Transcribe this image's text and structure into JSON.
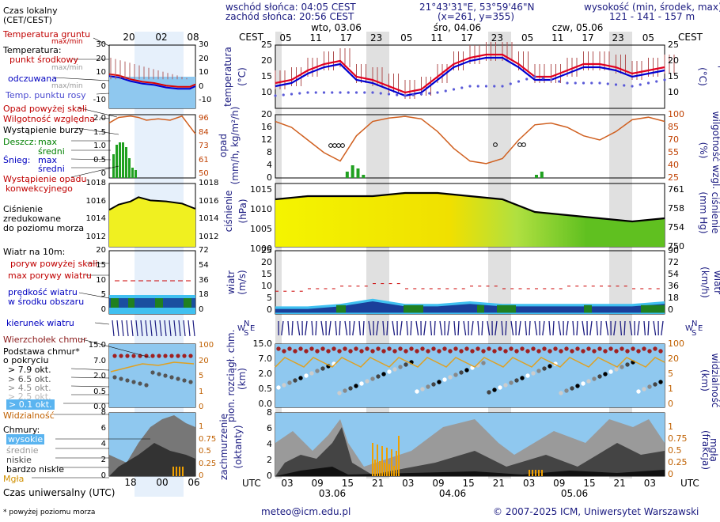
{
  "header": {
    "sunrise": "wschód słońca: 04:05 CEST",
    "sunset": "zachód słońca: 20:56 CEST",
    "coords": "21°43'31\"E, 53°59'46\"N",
    "grid": "(x=261,  y=355)",
    "elev_title": "wysokość (min, środek, max)",
    "elev_values": "121 - 141 - 157 m"
  },
  "legend": {
    "local_time": "Czas lokalny",
    "local_time2": "(CET/CEST)",
    "ground_temp": "Temperatura gruntu",
    "max_min": "max/min",
    "temperature": "Temperatura:",
    "center_point": "punkt środkowy",
    "max_min2": "max/min",
    "felt": "odczuwana",
    "max_min3": "max/min",
    "dew_point": "Temp. punktu rosy",
    "precip_above": "Opad powyżej skali",
    "humidity": "Wilgotność względna",
    "storm": "Wystąpienie burzy",
    "rain": "Deszcz:",
    "max": "max",
    "mean": "średni",
    "snow": "Śnieg:",
    "conv": "Wystąpienie opadu",
    "conv2": "konwekcyjnego",
    "pressure1": "Ciśnienie",
    "pressure2": "zredukowane",
    "pressure3": "do poziomu morza",
    "wind_at": "Wiatr na 10m:",
    "gust_above": "poryw powyżej skali",
    "max_gust": "max porywy wiatru",
    "wind_speed1": "prędkość wiatru",
    "wind_speed2": "w środku obszaru",
    "wind_dir": "kierunek wiatru",
    "cloud_top": "Wierzchołek chmur",
    "cloud_base1": "Podstawa chmur*",
    "cloud_base2": "o pokryciu",
    "okt79": "> 7.9 okt.",
    "okt65": "> 6.5 okt.",
    "okt45": "> 4.5 okt.",
    "okt25": "> 2.5 okt.",
    "okt01": "> 0.1 okt.",
    "visibility": "Widzialność",
    "clouds": "Chmury:",
    "high": "wysokie",
    "middle": "średnie",
    "low": "niskie",
    "very_low": "bardzo niskie",
    "fog": "Mgła",
    "utc_time": "Czas uniwersalny (UTC)",
    "footnote": "* powyżej poziomu morza"
  },
  "mini": {
    "local_ticks": [
      "20",
      "02",
      "08"
    ],
    "utc_ticks": [
      "18",
      "00",
      "06"
    ],
    "temp_left": [
      "30",
      "20",
      "10",
      "0",
      "-10"
    ],
    "temp_right": [
      "30",
      "20",
      "10",
      "0",
      "-10"
    ],
    "precip_left": [
      "2.0",
      "1.5",
      "1.0",
      "0.5",
      "0"
    ],
    "precip_right": [
      "96",
      "84",
      "73",
      "61",
      "50"
    ],
    "press_left": [
      "1018",
      "1016",
      "1014",
      "1012"
    ],
    "press_right": [
      "1018",
      "1016",
      "1014",
      "1012"
    ],
    "wind_left": [
      "20",
      "15",
      "10",
      "5",
      "0"
    ],
    "wind_right": [
      "72",
      "54",
      "36",
      "18",
      "0"
    ],
    "cb_left": [
      "15.0",
      "7.0",
      "2.0",
      "0.5",
      "0.0"
    ],
    "cb_right": [
      "100",
      "20",
      "5",
      "1",
      "0"
    ],
    "cl_left": [
      "8",
      "6",
      "4",
      "2",
      "0"
    ],
    "cl_right": [
      "1",
      "0.75",
      "0.5",
      "0.25",
      "0"
    ]
  },
  "main": {
    "cest_label": "CEST",
    "utc_label": "UTC",
    "day_labels": [
      "wto, 03.06",
      "śro, 04.06",
      "czw, 05.06"
    ],
    "utc_day_labels": [
      "03.06",
      "04.06",
      "05.06"
    ],
    "top_ticks": [
      "05",
      "11",
      "17",
      "23",
      "05",
      "11",
      "17",
      "23",
      "05",
      "11",
      "17",
      "23",
      "05"
    ],
    "bottom_ticks": [
      "03",
      "09",
      "15",
      "21",
      "03",
      "09",
      "15",
      "21",
      "03",
      "09",
      "15",
      "21",
      "03"
    ],
    "temp_axis": [
      "25",
      "20",
      "15",
      "10"
    ],
    "temp_label": "temperatura",
    "temp_unit": "(°C)",
    "precip_axis": [
      "20",
      "16",
      "12",
      "8",
      "4",
      "0"
    ],
    "precip_label": "opad",
    "precip_unit": "(mm/h, kg/m²/h)",
    "hum_axis": [
      "100",
      "85",
      "70",
      "55",
      "40",
      "25"
    ],
    "hum_label": "wilgotność wzgl.",
    "hum_unit": "(%)",
    "press_axis": [
      "1015",
      "1010",
      "1005",
      "1000"
    ],
    "press_label": "ciśnienie",
    "press_unit": "(hPa)",
    "press_mm_axis": [
      "761",
      "758",
      "754",
      "750"
    ],
    "press_mm_unit": "(mm Hg)",
    "wind_axis": [
      "25",
      "20",
      "15",
      "10",
      "5",
      "0"
    ],
    "wind_label": "wiatr",
    "wind_unit": "(m/s)",
    "wind_kmh_axis": [
      "90",
      "72",
      "54",
      "36",
      "18",
      "0"
    ],
    "wind_kmh_unit": "(km/h)",
    "cb_axis": [
      "15.0",
      "7.0",
      "2.0",
      "0.5",
      "0.0"
    ],
    "cb_label": "pion. rozciągł. chm.",
    "cb_unit": "(km)",
    "vis_axis": [
      "100",
      "20",
      "5",
      "1",
      "0"
    ],
    "vis_label": "widzialność",
    "vis_unit": "(km)",
    "cl_axis": [
      "8",
      "6",
      "4",
      "2",
      "0"
    ],
    "cl_label": "zachmurzenie",
    "cl_unit": "(oktanty)",
    "fog_axis": [
      "1",
      "0.75",
      "0.5",
      "0.25",
      "0"
    ],
    "fog_label": "mgła",
    "fog_unit": "(frakcja)",
    "compass_n": "N",
    "compass_w": "W",
    "compass_e": "E",
    "compass_s": "S"
  },
  "footer": {
    "email": "meteo@icm.edu.pl",
    "copyright": "© 2007-2025 ICM, Uniwersytet Warszawski"
  },
  "chart_data": {
    "type": "line",
    "title": "Meteogram 21°43'31\"E, 53°59'46\"N",
    "x_unit": "hours from 03.06 00 UTC",
    "series": [
      {
        "name": "temperatura (°C)",
        "x": [
          0,
          3,
          6,
          9,
          12,
          15,
          18,
          21,
          24,
          27,
          30,
          33,
          36,
          39,
          42,
          45,
          48,
          51,
          54,
          57,
          60,
          63,
          66,
          69,
          72
        ],
        "values": [
          13,
          14,
          17,
          19,
          20,
          15,
          14,
          12,
          10,
          11,
          15,
          19,
          21,
          22,
          22,
          19,
          15,
          15,
          17,
          19,
          19,
          18,
          16,
          17,
          18
        ]
      },
      {
        "name": "punkt rosy (°C)",
        "x": [
          0,
          6,
          12,
          18,
          24,
          30,
          36,
          42,
          48,
          54,
          60,
          66,
          72
        ],
        "values": [
          9,
          10,
          10,
          10,
          9,
          10,
          12,
          12,
          15,
          13,
          13,
          12,
          14
        ]
      },
      {
        "name": "wilgotność wzgl. (%)",
        "x": [
          0,
          3,
          6,
          9,
          12,
          15,
          18,
          21,
          24,
          27,
          30,
          33,
          36,
          39,
          42,
          45,
          48,
          51,
          54,
          57,
          60,
          63,
          66,
          69,
          72
        ],
        "values": [
          92,
          85,
          70,
          55,
          45,
          75,
          92,
          96,
          98,
          95,
          80,
          60,
          45,
          42,
          48,
          70,
          88,
          90,
          85,
          75,
          70,
          80,
          94,
          97,
          92
        ]
      },
      {
        "name": "opad max (mm/h)",
        "x": [
          13,
          14,
          15,
          16,
          48,
          49
        ],
        "values": [
          2,
          4,
          3,
          1,
          1,
          2
        ]
      },
      {
        "name": "ciśnienie (hPa)",
        "x": [
          0,
          6,
          12,
          18,
          24,
          30,
          36,
          42,
          48,
          54,
          60,
          66,
          72
        ],
        "values": [
          1015,
          1016,
          1016,
          1016,
          1017,
          1017,
          1016,
          1015,
          1011,
          1010,
          1009,
          1008,
          1009
        ]
      },
      {
        "name": "prędkość wiatru (m/s)",
        "x": [
          0,
          6,
          12,
          18,
          24,
          30,
          36,
          42,
          48,
          54,
          60,
          66,
          72
        ],
        "values": [
          2,
          2,
          3,
          5,
          3,
          3,
          4,
          3,
          3,
          3,
          3,
          3,
          4
        ]
      },
      {
        "name": "max porywy (m/s)",
        "x": [
          0,
          6,
          12,
          18,
          24,
          30,
          36,
          42,
          48,
          54,
          60,
          66,
          72
        ],
        "values": [
          9,
          10,
          11,
          12,
          10,
          10,
          11,
          10,
          10,
          11,
          11,
          10,
          12
        ]
      }
    ]
  }
}
